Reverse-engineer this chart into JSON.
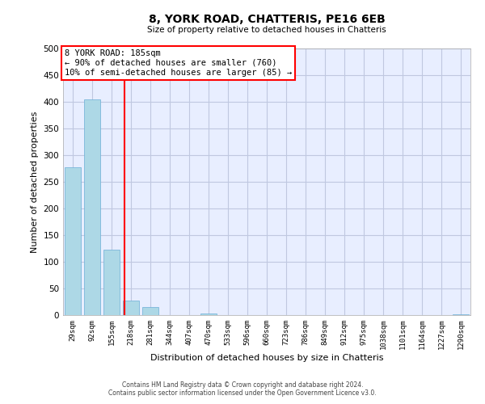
{
  "title": "8, YORK ROAD, CHATTERIS, PE16 6EB",
  "subtitle": "Size of property relative to detached houses in Chatteris",
  "xlabel": "Distribution of detached houses by size in Chatteris",
  "ylabel": "Number of detached properties",
  "bin_labels": [
    "29sqm",
    "92sqm",
    "155sqm",
    "218sqm",
    "281sqm",
    "344sqm",
    "407sqm",
    "470sqm",
    "533sqm",
    "596sqm",
    "660sqm",
    "723sqm",
    "786sqm",
    "849sqm",
    "912sqm",
    "975sqm",
    "1038sqm",
    "1101sqm",
    "1164sqm",
    "1227sqm",
    "1290sqm"
  ],
  "bar_heights": [
    278,
    405,
    122,
    28,
    15,
    0,
    0,
    3,
    0,
    0,
    0,
    0,
    0,
    0,
    0,
    0,
    0,
    0,
    0,
    0,
    2
  ],
  "bar_color": "#add8e6",
  "bar_edgecolor": "#6baed6",
  "vline_x": 2.65,
  "vline_color": "red",
  "annotation_title": "8 YORK ROAD: 185sqm",
  "annotation_line1": "← 90% of detached houses are smaller (760)",
  "annotation_line2": "10% of semi-detached houses are larger (85) →",
  "annotation_box_color": "white",
  "annotation_box_edgecolor": "red",
  "ylim": [
    0,
    500
  ],
  "yticks": [
    0,
    50,
    100,
    150,
    200,
    250,
    300,
    350,
    400,
    450,
    500
  ],
  "footer_line1": "Contains HM Land Registry data © Crown copyright and database right 2024.",
  "footer_line2": "Contains public sector information licensed under the Open Government Licence v3.0.",
  "background_color": "#e8eeff",
  "grid_color": "#c0c8e0"
}
